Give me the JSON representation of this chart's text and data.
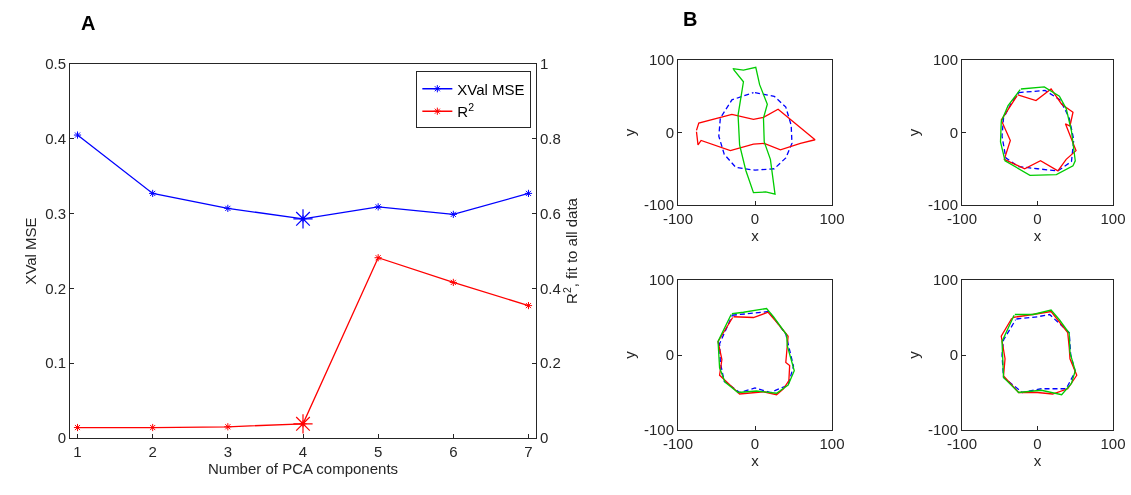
{
  "chart_data": [
    {
      "type": "line",
      "annotations": [
        "A"
      ],
      "xlabel": "Number of PCA components",
      "ylabel": "XVal MSE",
      "y2label": "R$^{2}$, fit to all data",
      "x": [
        1,
        2,
        3,
        4,
        5,
        6,
        7
      ],
      "xlim": [
        0.9,
        7.1
      ],
      "xticks": [
        1,
        2,
        3,
        4,
        5,
        6,
        7
      ],
      "ylim": [
        0,
        0.5
      ],
      "yticks": [
        0,
        0.1,
        0.2,
        0.3,
        0.4,
        0.5
      ],
      "y2lim": [
        0,
        1
      ],
      "y2ticks": [
        0,
        0.2,
        0.4,
        0.6,
        0.8,
        1
      ],
      "legend": "top right",
      "marker": "cross",
      "line_style": "solid",
      "series": [
        {
          "name": "XVal MSE",
          "color": "#0000ff",
          "values": [
            0.405,
            0.327,
            0.307,
            0.293,
            0.309,
            0.299,
            0.327
          ]
        },
        {
          "name": "R$^{2}$",
          "color": "#ff0000",
          "axis": "y2",
          "values": [
            0.028,
            0.028,
            0.03,
            0.038,
            0.482,
            0.416,
            0.354
          ]
        },
        {
          "type": "scatter",
          "color": "#0000ff",
          "values": [
            null,
            null,
            null,
            0.293,
            null,
            null,
            null
          ]
        },
        {
          "type": "scatter",
          "color": "#ff0000",
          "axis": "y2",
          "values": [
            null,
            null,
            null,
            0.038,
            null,
            null,
            null
          ]
        }
      ]
    },
    {
      "type": "line",
      "annotations": [
        "B"
      ],
      "xlabel": "x",
      "ylabel": "y",
      "xlim": [
        -100,
        100
      ],
      "xticks": [
        -100,
        0,
        100
      ],
      "ylim": [
        -100,
        100
      ],
      "yticks": [
        -100,
        0,
        100
      ],
      "marker": "none",
      "series": [
        {
          "color": "#0000ff",
          "line_style": "dashed",
          "x": [
            0,
            25,
            40,
            47,
            48,
            40,
            25,
            0,
            -25,
            -40,
            -47,
            -45,
            -30,
            -2
          ],
          "values": [
            55,
            50,
            35,
            10,
            -15,
            -35,
            -50,
            -52,
            -48,
            -30,
            -5,
            20,
            45,
            55
          ]
        },
        {
          "color": "#ff0000",
          "x": [
            -76,
            -73,
            -30,
            -2,
            11,
            30,
            78,
            59,
            33,
            12,
            -2,
            -32,
            -70,
            -74,
            -76
          ],
          "values": [
            3,
            13,
            25,
            18,
            21,
            32,
            -10,
            -15,
            -24,
            -15,
            -16,
            -25,
            -11,
            -17,
            1
          ]
        },
        {
          "color": "#00cc00",
          "x": [
            -29,
            -15,
            1,
            6,
            16,
            11,
            12,
            20,
            26,
            14,
            -2,
            -12,
            -20,
            -22,
            -15,
            -28
          ],
          "values": [
            88,
            86,
            90,
            66,
            39,
            20,
            -13,
            -37,
            -85,
            -82,
            -83,
            -52,
            -17,
            24,
            70,
            87
          ]
        }
      ]
    },
    {
      "type": "line",
      "xlabel": "x",
      "ylabel": "y",
      "xlim": [
        -100,
        100
      ],
      "xticks": [
        -100,
        0,
        100
      ],
      "ylim": [
        -100,
        100
      ],
      "yticks": [
        -100,
        0,
        100
      ],
      "marker": "none",
      "series": [
        {
          "color": "#0000ff",
          "line_style": "dashed",
          "x": [
            -25,
            10,
            30,
            42,
            48,
            45,
            27,
            0,
            -25,
            -42,
            -47,
            -45,
            -35,
            -24
          ],
          "values": [
            55,
            58,
            45,
            20,
            -10,
            -40,
            -53,
            -50,
            -47,
            -35,
            -5,
            20,
            40,
            56
          ]
        },
        {
          "color": "#ff0000",
          "x": [
            -26,
            -2,
            18,
            32,
            47,
            43,
            37,
            51,
            38,
            27,
            4,
            -17,
            -44,
            -36,
            -48,
            -27
          ],
          "values": [
            52,
            44,
            60,
            39,
            28,
            9,
            12,
            -25,
            -37,
            -53,
            -39,
            -50,
            -37,
            -11,
            17,
            51
          ]
        },
        {
          "color": "#00cc00",
          "x": [
            -22,
            9,
            29,
            38,
            45,
            50,
            47,
            25,
            -10,
            -43,
            -49,
            -48,
            -39,
            -23
          ],
          "values": [
            60,
            63,
            50,
            33,
            2,
            -39,
            -46,
            -58,
            -59,
            -39,
            -13,
            15,
            37,
            59
          ]
        }
      ]
    },
    {
      "type": "line",
      "xlabel": "x",
      "ylabel": "y",
      "xlim": [
        -100,
        100
      ],
      "xticks": [
        -100,
        0,
        100
      ],
      "ylim": [
        -100,
        100
      ],
      "yticks": [
        -100,
        0,
        100
      ],
      "marker": "none",
      "series": [
        {
          "color": "#0000ff",
          "line_style": "dashed",
          "x": [
            -30,
            0,
            18,
            40,
            50,
            43,
            20,
            0,
            -20,
            -40,
            -45,
            -46,
            -29
          ],
          "values": [
            53,
            56,
            58,
            28,
            -15,
            -40,
            -50,
            -44,
            -50,
            -35,
            -10,
            15,
            54
          ]
        },
        {
          "color": "#ff0000",
          "x": [
            -28,
            -2,
            17,
            28,
            43,
            40,
            45,
            44,
            37,
            28,
            11,
            -20,
            -46,
            -43,
            -48,
            -29
          ],
          "values": [
            51,
            50,
            57,
            44,
            25,
            -10,
            -14,
            -34,
            -45,
            -53,
            -49,
            -52,
            -27,
            -6,
            18,
            50
          ]
        },
        {
          "color": "#00cc00",
          "x": [
            -30,
            -15,
            15,
            24,
            41,
            42,
            51,
            43,
            28,
            2,
            -22,
            -39,
            -46,
            -48,
            -31
          ],
          "values": [
            55,
            57,
            62,
            51,
            27,
            12,
            -21,
            -40,
            -51,
            -48,
            -50,
            -36,
            -17,
            18,
            54
          ]
        }
      ]
    },
    {
      "type": "line",
      "xlabel": "x",
      "ylabel": "y",
      "xlim": [
        -100,
        100
      ],
      "xticks": [
        -100,
        0,
        100
      ],
      "ylim": [
        -100,
        100
      ],
      "yticks": [
        -100,
        0,
        100
      ],
      "marker": "none",
      "series": [
        {
          "color": "#0000ff",
          "line_style": "dashed",
          "x": [
            -28,
            0,
            16,
            42,
            44,
            50,
            38,
            5,
            -20,
            -45,
            -47,
            -45,
            -29
          ],
          "values": [
            48,
            51,
            54,
            30,
            0,
            -22,
            -45,
            -45,
            -50,
            -30,
            0,
            20,
            47
          ]
        },
        {
          "color": "#ff0000",
          "x": [
            -33,
            0,
            18,
            40,
            42,
            43,
            52,
            40,
            20,
            0,
            -25,
            -45,
            -43,
            -48,
            -34
          ],
          "values": [
            50,
            55,
            58,
            30,
            10,
            -5,
            -27,
            -45,
            -52,
            -50,
            -50,
            -28,
            -5,
            25,
            49
          ]
        },
        {
          "color": "#00cc00",
          "x": [
            -30,
            -6,
            18,
            29,
            42,
            43,
            50,
            45,
            32,
            5,
            -25,
            -45,
            -47,
            -31
          ],
          "values": [
            54,
            54,
            60,
            47,
            29,
            3,
            -21,
            -38,
            -53,
            -47,
            -50,
            -30,
            18,
            53
          ]
        }
      ]
    }
  ]
}
